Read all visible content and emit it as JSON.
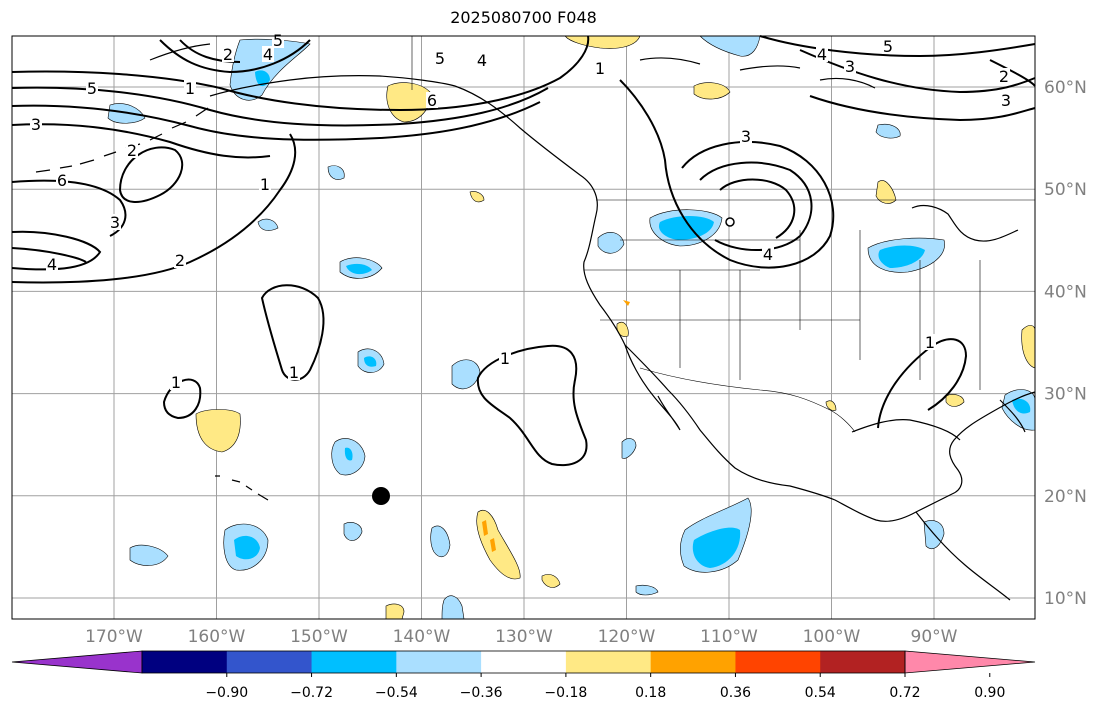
{
  "title": "2025080700 F048",
  "map": {
    "lon_labels": [
      "170°W",
      "160°W",
      "150°W",
      "140°W",
      "130°W",
      "120°W",
      "110°W",
      "100°W",
      "90°W"
    ],
    "lat_labels": [
      "60°N",
      "50°N",
      "40°N",
      "30°N",
      "20°N",
      "10°N"
    ],
    "contour_labels": [
      "5",
      "2",
      "4",
      "5",
      "4",
      "6",
      "5",
      "4",
      "3",
      "1",
      "5",
      "3",
      "3",
      "2",
      "6",
      "3",
      "4",
      "1",
      "2",
      "3",
      "4",
      "2",
      "1",
      "1",
      "1",
      "1",
      "1"
    ],
    "marker": {
      "name": "black-dot",
      "lon": -144,
      "lat": 20
    }
  },
  "colorbar": {
    "tick_labels": [
      "−0.90",
      "−0.72",
      "−0.54",
      "−0.36",
      "−0.18",
      "0.18",
      "0.36",
      "0.54",
      "0.72",
      "0.90"
    ],
    "colors": [
      "#9933cc",
      "#000080",
      "#3355cc",
      "#00bfff",
      "#aadfff",
      "#ffffff",
      "#ffe985",
      "#ffa200",
      "#ff4400",
      "#b22222",
      "#ff88aa"
    ]
  }
}
